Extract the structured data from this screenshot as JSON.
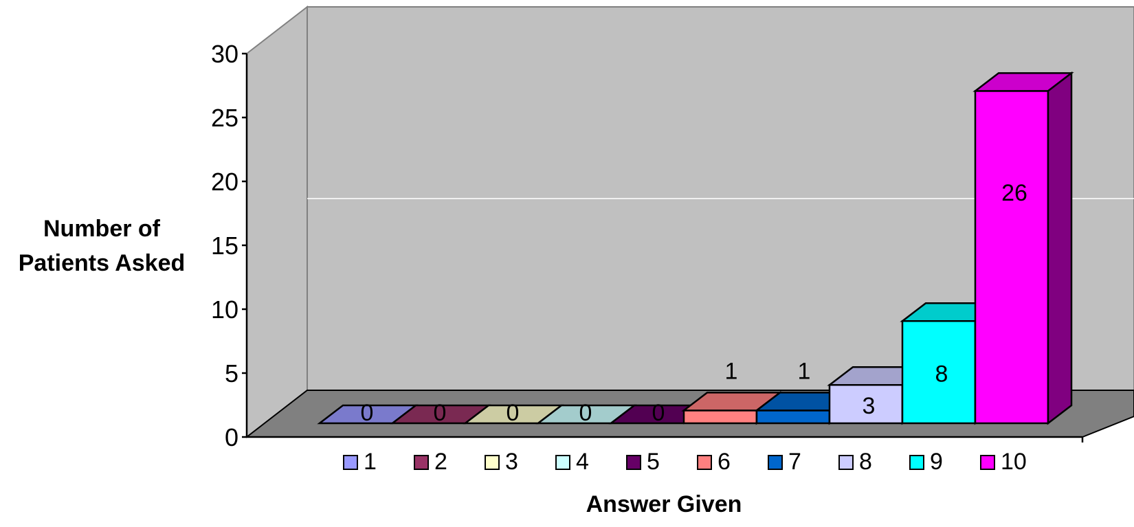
{
  "chart_data": {
    "type": "bar",
    "title": "",
    "xlabel": "Answer Given",
    "ylabel": "Number of Patients Asked",
    "ylabel_lines": [
      "Number of",
      "Patients Asked"
    ],
    "ylim": [
      0,
      30
    ],
    "yticks": [
      0,
      5,
      10,
      15,
      20,
      25,
      30
    ],
    "grid": true,
    "legend_position": "bottom",
    "categories": [
      "1",
      "2",
      "3",
      "4",
      "5",
      "6",
      "7",
      "8",
      "9",
      "10"
    ],
    "values": [
      0,
      0,
      0,
      0,
      0,
      1,
      1,
      3,
      8,
      26
    ],
    "series_colors": [
      "#9999FF",
      "#993366",
      "#FFFFCC",
      "#CCFFFF",
      "#660066",
      "#FF8080",
      "#0066CC",
      "#CCCCFF",
      "#00FFFF",
      "#FF00FF"
    ],
    "wall_color": "#C0C0C0",
    "floor_color": "#808080"
  }
}
